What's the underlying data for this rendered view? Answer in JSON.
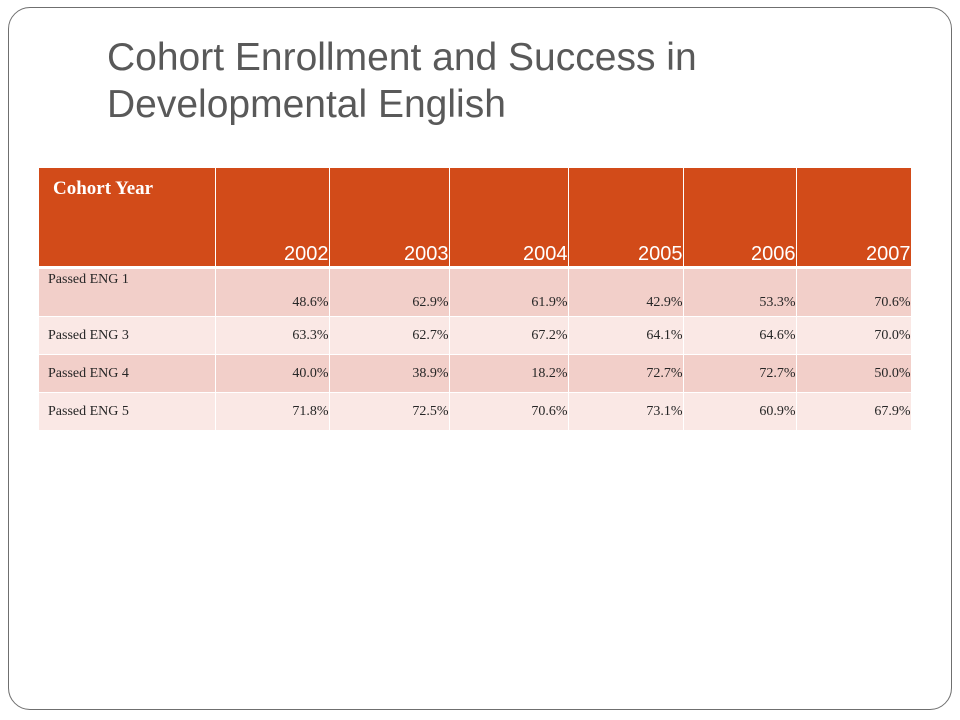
{
  "slide": {
    "title": "Cohort Enrollment and Success in Developmental English"
  },
  "table": {
    "corner_label": "Cohort Year",
    "columns": [
      "2002",
      "2003",
      "2004",
      "2005",
      "2006",
      "2007"
    ],
    "rows": [
      {
        "label": "Passed ENG 1",
        "values": [
          "48.6%",
          "62.9%",
          "61.9%",
          "42.9%",
          "53.3%",
          "70.6%"
        ]
      },
      {
        "label": "Passed ENG 3",
        "values": [
          "63.3%",
          "62.7%",
          "67.2%",
          "64.1%",
          "64.6%",
          "70.0%"
        ]
      },
      {
        "label": "Passed ENG 4",
        "values": [
          "40.0%",
          "38.9%",
          "18.2%",
          "72.7%",
          "72.7%",
          "50.0%"
        ]
      },
      {
        "label": "Passed ENG 5",
        "values": [
          "71.8%",
          "72.5%",
          "70.6%",
          "73.1%",
          "60.9%",
          "67.9%"
        ]
      }
    ]
  },
  "colors": {
    "header": "#d24b19",
    "row_dark": "#f2cfc9",
    "row_light": "#fae8e5",
    "title": "#595959"
  }
}
